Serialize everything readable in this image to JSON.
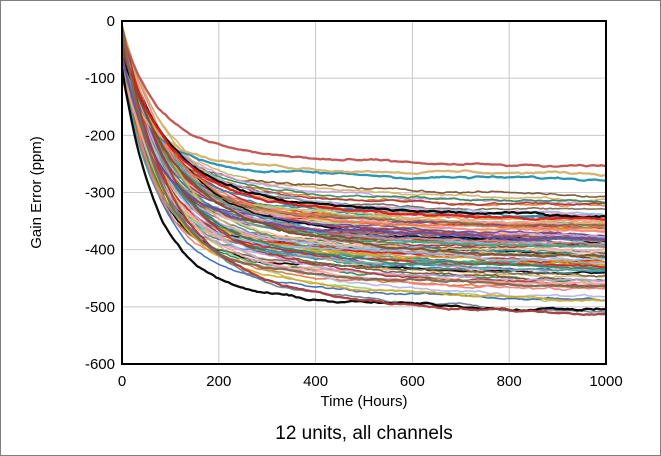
{
  "chart_data": {
    "type": "line",
    "caption": "12 units, all channels",
    "xlabel": "Time (Hours)",
    "ylabel": "Gain Error (ppm)",
    "xlim": [
      0,
      1000
    ],
    "ylim": [
      -600,
      0
    ],
    "x_ticks": [
      "0",
      "200",
      "400",
      "600",
      "800",
      "1000"
    ],
    "y_ticks": [
      "0",
      "-100",
      "-200",
      "-300",
      "-400",
      "-500",
      "-600"
    ],
    "x_tick_values": [
      0,
      200,
      400,
      600,
      800,
      1000
    ],
    "y_tick_values": [
      0,
      -100,
      -200,
      -300,
      -400,
      -500,
      -600
    ],
    "grid": true,
    "legend": "none",
    "series_count": 96,
    "final_value_range": [
      -525,
      -262
    ],
    "drift_shape": "exponential-like decay from 0 toward final value",
    "highlight_series": [
      {
        "color": "#1f8fb0",
        "final": -280
      },
      {
        "color": "#d4b06a",
        "final": -270
      },
      {
        "color": "#c0504d",
        "final": -262
      },
      {
        "color": "#000000",
        "final": -345
      },
      {
        "color": "#e31a1c",
        "final": -355
      },
      {
        "color": "#6b4c9a",
        "final": -390
      },
      {
        "color": "#7a5230",
        "final": -420
      },
      {
        "color": "#000000",
        "final": -510
      },
      {
        "color": "#a63a3a",
        "final": -522
      },
      {
        "color": "#7a6a50",
        "final": -470
      }
    ],
    "palette": [
      "#1f8fb0",
      "#d4b06a",
      "#c0504d",
      "#000000",
      "#e31a1c",
      "#6b4c9a",
      "#7a5230",
      "#8fbce6",
      "#e8a0c8",
      "#9bd17f",
      "#f4c27a",
      "#7a6a50",
      "#3b6fb5",
      "#c9a0dc",
      "#5aa469",
      "#e07b39",
      "#a63a3a",
      "#4aa3a2",
      "#b5b5e8",
      "#f08080",
      "#2e8b57",
      "#daa520",
      "#708090",
      "#ff9f9f"
    ]
  }
}
